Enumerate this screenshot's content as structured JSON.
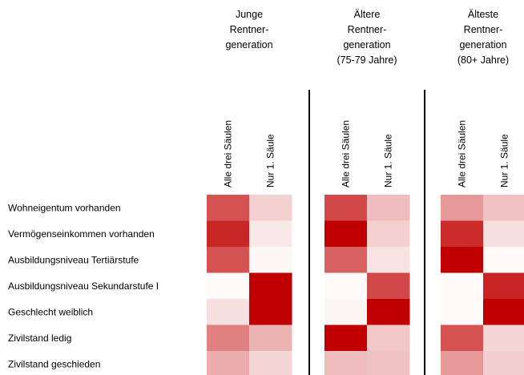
{
  "chart_data": {
    "type": "heatmap",
    "groups": [
      {
        "label_lines": [
          "Junge",
          "Rentner-",
          "generation"
        ]
      },
      {
        "label_lines": [
          "Ältere",
          "Rentner-",
          "generation",
          "(75-79 Jahre)"
        ]
      },
      {
        "label_lines": [
          "Älteste",
          "Rentner-",
          "generation",
          "(80+ Jahre)"
        ]
      }
    ],
    "columns": [
      "Alle drei Säulen",
      "Nur 1. Säule"
    ],
    "rows": [
      "Wohneigentum vorhanden",
      "Vermögenseinkommen vorhanden",
      "Ausbildungsniveau Tertiärstufe",
      "Ausbildungsniveau Sekundarstufe I",
      "Geschlecht weiblich",
      "Zivilstand ledig",
      "Zivilstand geschieden"
    ],
    "values": [
      [
        [
          0.68,
          0.18
        ],
        [
          0.72,
          0.26
        ],
        [
          0.4,
          0.24
        ]
      ],
      [
        [
          0.85,
          0.09
        ],
        [
          1.0,
          0.18
        ],
        [
          0.83,
          0.12
        ]
      ],
      [
        [
          0.68,
          0.03
        ],
        [
          0.62,
          0.11
        ],
        [
          1.0,
          0.02
        ]
      ],
      [
        [
          0.02,
          1.0
        ],
        [
          0.02,
          0.72
        ],
        [
          0.02,
          0.86
        ]
      ],
      [
        [
          0.12,
          1.0
        ],
        [
          0.04,
          1.0
        ],
        [
          0.02,
          1.0
        ]
      ],
      [
        [
          0.5,
          0.3
        ],
        [
          1.0,
          0.22
        ],
        [
          0.68,
          0.16
        ]
      ],
      [
        [
          0.32,
          0.16
        ],
        [
          0.26,
          0.24
        ],
        [
          0.4,
          0.19
        ]
      ]
    ],
    "color_scale": {
      "low": "#ffffff",
      "high": "#c00000"
    },
    "legend": false,
    "grid": false
  }
}
